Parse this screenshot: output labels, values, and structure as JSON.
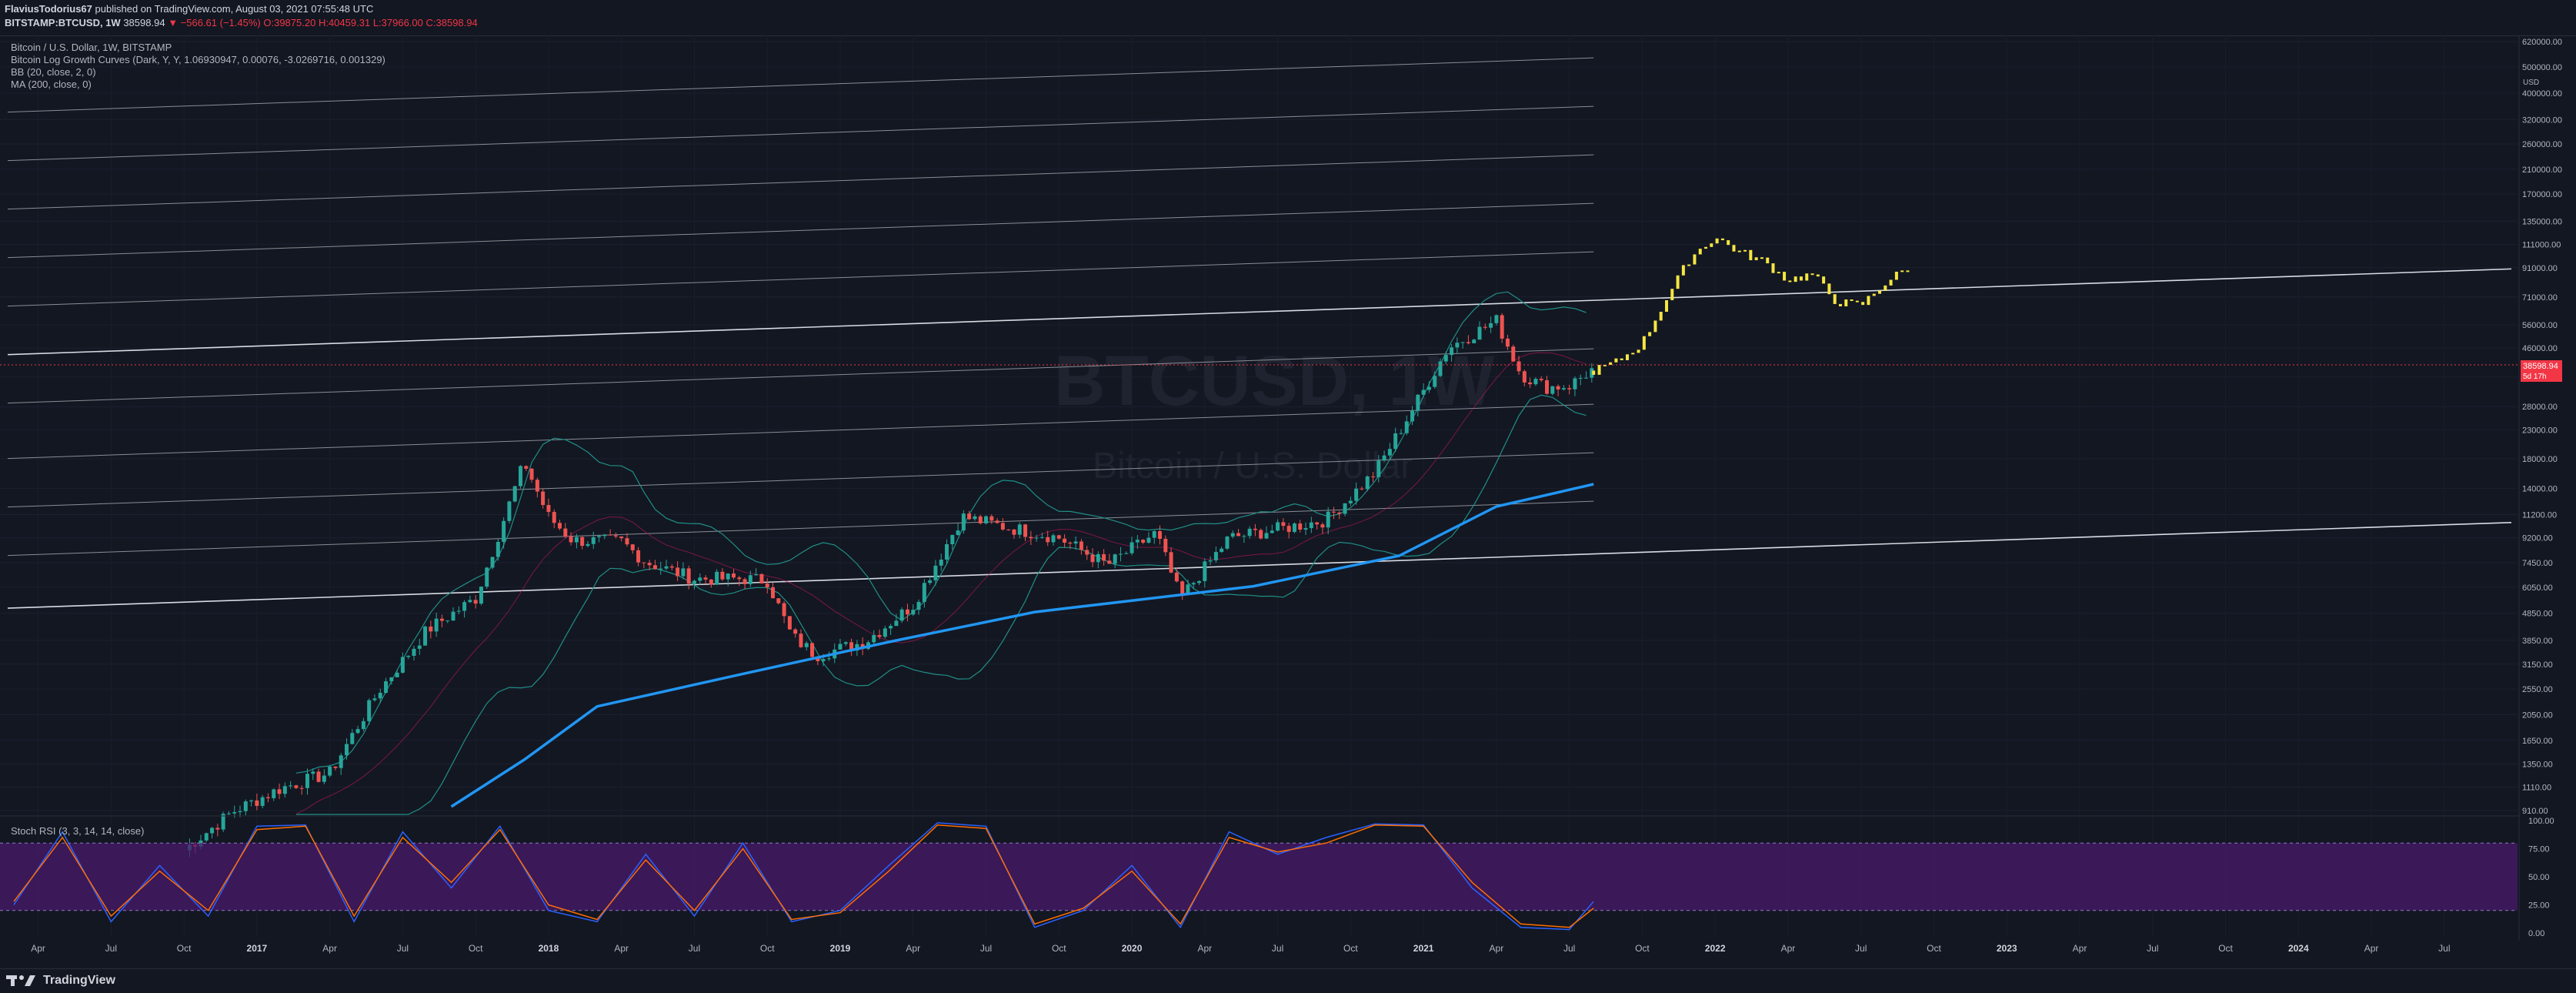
{
  "header": {
    "author": "FlaviusTodorius67",
    "published_text": " published on TradingView.com, August 03, 2021 07:55:48 UTC",
    "symbol": "BITSTAMP:BTCUSD, 1W",
    "last_price": "38598.94",
    "change": "▼ −566.61 (−1.45%)",
    "ohlc_open": "O:39875.20",
    "ohlc_high": "H:40459.31",
    "ohlc_low": "L:37966.00",
    "ohlc_close": "C:38598.94"
  },
  "legend": {
    "main": "Bitcoin / U.S. Dollar, 1W, BITSTAMP",
    "curves": "Bitcoin Log Growth Curves (Dark, Y, Y, 1.06930947, 0.00076, -3.0269716, 0.001329)",
    "bb": "BB (20, close, 2, 0)",
    "ma": "MA (200, close, 0)",
    "rsi": "Stoch RSI (3, 3, 14, 14, close)"
  },
  "watermark": {
    "ticker": "BTCUSD, 1W",
    "name": "Bitcoin / U.S. Dollar"
  },
  "price_tag": {
    "price": "38598.94",
    "countdown": "5d 17h"
  },
  "colors": {
    "background": "#131722",
    "up": "#26a69a",
    "down": "#ef5350",
    "projection": "#f5e642",
    "ma": "#2196f3",
    "bb": "#1f8f86",
    "rsi_k": "#2962ff",
    "rsi_d": "#ff6d00",
    "rsi_band": "#4a1a6b"
  },
  "footer": {
    "brand": "TradingView"
  },
  "chart_data": [
    {
      "type": "line",
      "title": "",
      "y_scale": "log",
      "ylim": [
        880,
        620000
      ],
      "y_ticks": [
        "620000.00",
        "500000.00",
        "400000.00",
        "320000.00",
        "260000.00",
        "210000.00",
        "170000.00",
        "135000.00",
        "111000.00",
        "91000.00",
        "71000.00",
        "56000.00",
        "46000.00",
        "36000.00",
        "28000.00",
        "23000.00",
        "18000.00",
        "14000.00",
        "11200.00",
        "9200.00",
        "7450.00",
        "6050.00",
        "4850.00",
        "3850.00",
        "3150.00",
        "2550.00",
        "2050.00",
        "1650.00",
        "1350.00",
        "1110.00",
        "910.00"
      ],
      "y_unit": "USD",
      "x_ticks": [
        "Apr",
        "Jul",
        "Oct",
        "2017",
        "Apr",
        "Jul",
        "Oct",
        "2018",
        "Apr",
        "Jul",
        "Oct",
        "2019",
        "Apr",
        "Jul",
        "Oct",
        "2020",
        "Apr",
        "Jul",
        "Oct",
        "2021",
        "Apr",
        "Jul",
        "Oct",
        "2022",
        "Apr",
        "Jul",
        "Oct",
        "2023",
        "Apr",
        "Jul",
        "Oct",
        "2024",
        "Apr",
        "Jul"
      ],
      "x_range": [
        "2016-03",
        "2024-09"
      ],
      "series": [
        {
          "name": "BTCUSD",
          "kind": "candlestick-anchors",
          "x": [
            "2016-10",
            "2016-12",
            "2017-02",
            "2017-04",
            "2017-06",
            "2017-08",
            "2017-10",
            "2017-12",
            "2018-01",
            "2018-02",
            "2018-04",
            "2018-05",
            "2018-07",
            "2018-09",
            "2018-10",
            "2018-11",
            "2018-12",
            "2019-02",
            "2019-04",
            "2019-06",
            "2019-08",
            "2019-10",
            "2019-12",
            "2020-02",
            "2020-03",
            "2020-05",
            "2020-07",
            "2020-09",
            "2020-11",
            "2021-01",
            "2021-02",
            "2021-04",
            "2021-05",
            "2021-06",
            "2021-07",
            "2021-08"
          ],
          "y": [
            650,
            900,
            1100,
            1250,
            2500,
            4200,
            5500,
            17500,
            11000,
            9000,
            8900,
            7500,
            6500,
            6500,
            6400,
            4000,
            3400,
            3800,
            5200,
            11000,
            10000,
            9200,
            7300,
            9600,
            5500,
            9200,
            9900,
            10700,
            16000,
            32000,
            46000,
            58000,
            37000,
            33000,
            33500,
            38598.94
          ]
        },
        {
          "name": "Projection",
          "kind": "projected-candles",
          "x": [
            "2021-08",
            "2021-09",
            "2021-10",
            "2021-11",
            "2021-12",
            "2022-01",
            "2022-02",
            "2022-03",
            "2022-04",
            "2022-05",
            "2022-06",
            "2022-07",
            "2022-08",
            "2022-09"
          ],
          "y": [
            38000,
            41000,
            48000,
            70000,
            100000,
            118000,
            104000,
            96000,
            82000,
            86000,
            68000,
            66000,
            80000,
            92000
          ]
        },
        {
          "name": "MA 200",
          "kind": "line",
          "x": [
            "2017-09",
            "2017-12",
            "2018-03",
            "2018-09",
            "2019-03",
            "2019-09",
            "2020-01",
            "2020-06",
            "2020-12",
            "2021-04",
            "2021-08"
          ],
          "y": [
            940,
            1400,
            2200,
            2900,
            3800,
            4900,
            5400,
            6100,
            7900,
            12000,
            14500
          ]
        }
      ]
    },
    {
      "type": "line",
      "title": "",
      "ylim": [
        0,
        100
      ],
      "y_ticks": [
        "100.00",
        "75.00",
        "50.00",
        "25.00",
        "0.00"
      ],
      "bands": [
        20,
        80
      ],
      "series": [
        {
          "name": "K",
          "x": [
            "2016-03",
            "2016-05",
            "2016-07",
            "2016-09",
            "2016-11",
            "2017-01",
            "2017-03",
            "2017-05",
            "2017-07",
            "2017-09",
            "2017-11",
            "2018-01",
            "2018-03",
            "2018-05",
            "2018-07",
            "2018-09",
            "2018-11",
            "2019-01",
            "2019-03",
            "2019-05",
            "2019-07",
            "2019-09",
            "2019-11",
            "2020-01",
            "2020-03",
            "2020-05",
            "2020-07",
            "2020-09",
            "2020-11",
            "2021-01",
            "2021-03",
            "2021-05",
            "2021-07",
            "2021-08"
          ],
          "values": [
            25,
            90,
            10,
            60,
            15,
            95,
            96,
            10,
            90,
            40,
            95,
            20,
            10,
            70,
            15,
            80,
            10,
            20,
            60,
            98,
            95,
            5,
            20,
            60,
            5,
            90,
            70,
            85,
            97,
            96,
            40,
            5,
            3,
            28
          ]
        },
        {
          "name": "D",
          "x": [
            "2016-03",
            "2016-05",
            "2016-07",
            "2016-09",
            "2016-11",
            "2017-01",
            "2017-03",
            "2017-05",
            "2017-07",
            "2017-09",
            "2017-11",
            "2018-01",
            "2018-03",
            "2018-05",
            "2018-07",
            "2018-09",
            "2018-11",
            "2019-01",
            "2019-03",
            "2019-05",
            "2019-07",
            "2019-09",
            "2019-11",
            "2020-01",
            "2020-03",
            "2020-05",
            "2020-07",
            "2020-09",
            "2020-11",
            "2021-01",
            "2021-03",
            "2021-05",
            "2021-07",
            "2021-08"
          ],
          "values": [
            28,
            85,
            15,
            55,
            20,
            92,
            95,
            15,
            85,
            45,
            92,
            25,
            12,
            65,
            20,
            75,
            12,
            18,
            55,
            96,
            93,
            8,
            22,
            55,
            8,
            85,
            72,
            80,
            96,
            95,
            45,
            8,
            5,
            22
          ]
        }
      ]
    }
  ]
}
